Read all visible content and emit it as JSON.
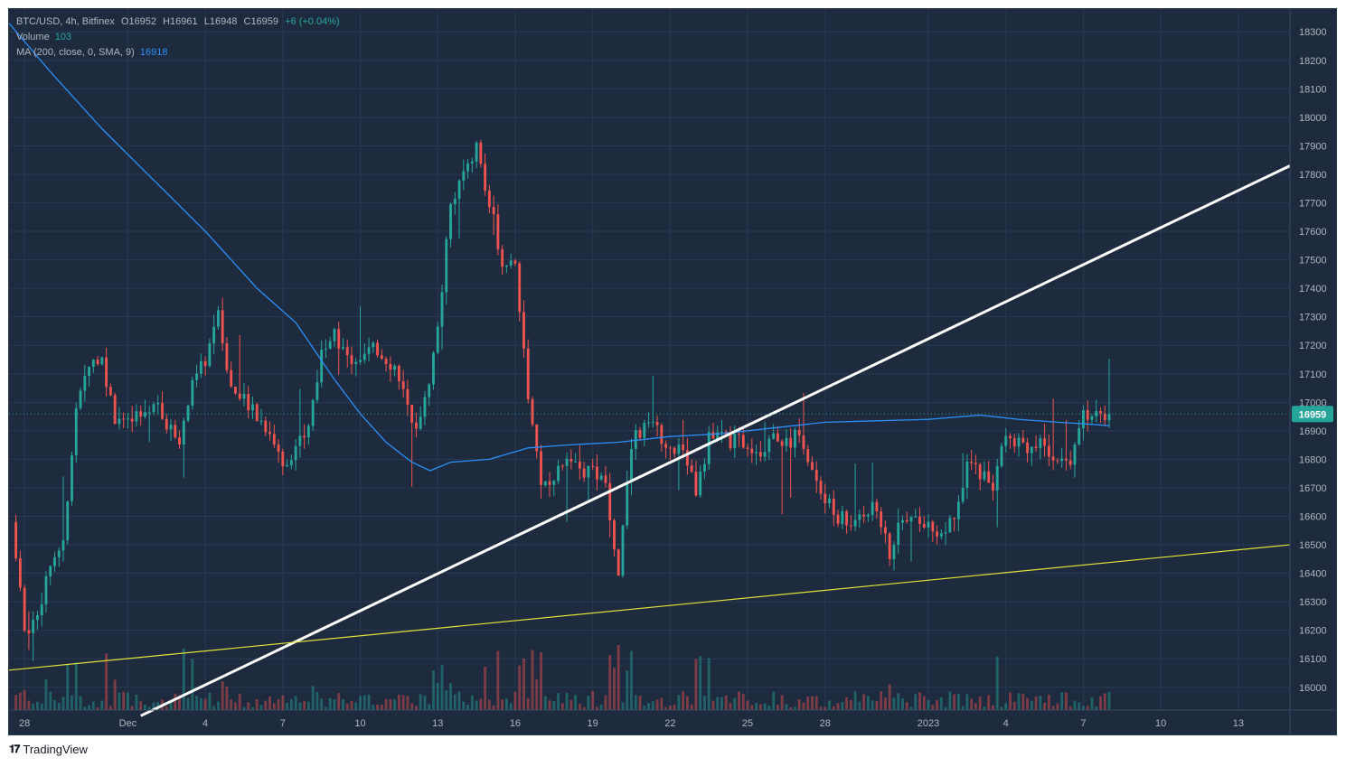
{
  "legend": {
    "symbol": "BTC/USD, 4h, Bitfinex",
    "open": "O16952",
    "high": "H16961",
    "low": "L16948",
    "close": "C16959",
    "change": "+6 (+0.04%)",
    "volume_label": "Volume",
    "volume_value": "103",
    "ma_label": "MA (200, close, 0, SMA, 9)",
    "ma_value": "16918"
  },
  "price_tag": "16959",
  "brand": "TradingView",
  "colors": {
    "background": "#1e2b3e",
    "up": "#26a69a",
    "down": "#ef5350",
    "ma": "#2a8ff7",
    "trendline_white": "#ffffff",
    "trendline_yellow": "#e2e23a",
    "text": "#b2b5be"
  },
  "chart_data": {
    "type": "candlestick",
    "symbol": "BTC/USD",
    "interval": "4h",
    "exchange": "Bitfinex",
    "ylim": [
      15920,
      18380
    ],
    "y_ticks": [
      16000,
      16100,
      16200,
      16300,
      16400,
      16500,
      16600,
      16700,
      16800,
      16900,
      17000,
      17100,
      17200,
      17300,
      17400,
      17500,
      17600,
      17700,
      17800,
      17900,
      18000,
      18100,
      18200,
      18300
    ],
    "x_ticks": [
      {
        "label": "28",
        "day": -3
      },
      {
        "label": "Dec",
        "day": 1
      },
      {
        "label": "4",
        "day": 4
      },
      {
        "label": "7",
        "day": 7
      },
      {
        "label": "10",
        "day": 10
      },
      {
        "label": "13",
        "day": 13
      },
      {
        "label": "16",
        "day": 16
      },
      {
        "label": "19",
        "day": 19
      },
      {
        "label": "22",
        "day": 22
      },
      {
        "label": "25",
        "day": 25
      },
      {
        "label": "28",
        "day": 28
      },
      {
        "label": "2023",
        "day": 32
      },
      {
        "label": "4",
        "day": 35
      },
      {
        "label": "7",
        "day": 38
      },
      {
        "label": "10",
        "day": 41
      },
      {
        "label": "13",
        "day": 44
      }
    ],
    "x_range": [
      -3.6,
      46.0
    ],
    "current_price": 16959,
    "close_path": [
      [
        -3.5,
        16580
      ],
      [
        -3.0,
        16200
      ],
      [
        -2.5,
        16250
      ],
      [
        -2.0,
        16450
      ],
      [
        -1.5,
        16500
      ],
      [
        -1.0,
        16950
      ],
      [
        -0.5,
        17150
      ],
      [
        0.0,
        17150
      ],
      [
        0.5,
        16950
      ],
      [
        1.0,
        16920
      ],
      [
        1.5,
        16950
      ],
      [
        2.0,
        17000
      ],
      [
        2.5,
        16920
      ],
      [
        3.0,
        16880
      ],
      [
        3.5,
        17050
      ],
      [
        4.0,
        17150
      ],
      [
        4.5,
        17300
      ],
      [
        5.0,
        17050
      ],
      [
        5.5,
        17000
      ],
      [
        6.0,
        16950
      ],
      [
        6.5,
        16900
      ],
      [
        7.0,
        16780
      ],
      [
        7.5,
        16850
      ],
      [
        8.0,
        16900
      ],
      [
        8.5,
        17200
      ],
      [
        9.0,
        17250
      ],
      [
        9.5,
        17150
      ],
      [
        10.0,
        17160
      ],
      [
        10.5,
        17180
      ],
      [
        11.0,
        17160
      ],
      [
        11.5,
        17100
      ],
      [
        12.0,
        16900
      ],
      [
        12.5,
        17000
      ],
      [
        13.0,
        17250
      ],
      [
        13.5,
        17700
      ],
      [
        14.0,
        17800
      ],
      [
        14.5,
        17900
      ],
      [
        15.0,
        17700
      ],
      [
        15.5,
        17500
      ],
      [
        16.0,
        17480
      ],
      [
        16.5,
        17000
      ],
      [
        17.0,
        16700
      ],
      [
        17.5,
        16750
      ],
      [
        18.0,
        16780
      ],
      [
        18.5,
        16760
      ],
      [
        19.0,
        16750
      ],
      [
        19.5,
        16700
      ],
      [
        20.0,
        16400
      ],
      [
        20.5,
        16850
      ],
      [
        21.0,
        16920
      ],
      [
        21.5,
        16900
      ],
      [
        22.0,
        16850
      ],
      [
        22.5,
        16820
      ],
      [
        23.0,
        16700
      ],
      [
        23.5,
        16870
      ],
      [
        24.0,
        16880
      ],
      [
        24.5,
        16860
      ],
      [
        25.0,
        16860
      ],
      [
        25.5,
        16830
      ],
      [
        26.0,
        16900
      ],
      [
        26.5,
        16850
      ],
      [
        27.0,
        16900
      ],
      [
        27.5,
        16750
      ],
      [
        28.0,
        16650
      ],
      [
        28.5,
        16600
      ],
      [
        29.0,
        16580
      ],
      [
        29.5,
        16620
      ],
      [
        30.0,
        16640
      ],
      [
        30.5,
        16450
      ],
      [
        31.0,
        16600
      ],
      [
        31.5,
        16620
      ],
      [
        32.0,
        16560
      ],
      [
        32.5,
        16540
      ],
      [
        33.0,
        16600
      ],
      [
        33.5,
        16780
      ],
      [
        34.0,
        16760
      ],
      [
        34.5,
        16700
      ],
      [
        35.0,
        16880
      ],
      [
        35.5,
        16870
      ],
      [
        36.0,
        16840
      ],
      [
        36.5,
        16850
      ],
      [
        37.0,
        16800
      ],
      [
        37.5,
        16780
      ],
      [
        38.0,
        16960
      ],
      [
        38.5,
        16950
      ],
      [
        39.0,
        16959
      ]
    ],
    "ma_200": {
      "name": "MA (200, close, 0, SMA, 9)",
      "points": [
        [
          -3.6,
          18330
        ],
        [
          -2.0,
          18160
        ],
        [
          0.0,
          17960
        ],
        [
          2.0,
          17780
        ],
        [
          4.0,
          17600
        ],
        [
          6.0,
          17400
        ],
        [
          7.5,
          17280
        ],
        [
          9.0,
          17080
        ],
        [
          10.0,
          16960
        ],
        [
          11.0,
          16860
        ],
        [
          12.0,
          16790
        ],
        [
          12.7,
          16760
        ],
        [
          13.5,
          16790
        ],
        [
          15.0,
          16800
        ],
        [
          16.5,
          16840
        ],
        [
          18.0,
          16850
        ],
        [
          20.0,
          16860
        ],
        [
          22.0,
          16880
        ],
        [
          24.0,
          16890
        ],
        [
          26.0,
          16910
        ],
        [
          28.0,
          16930
        ],
        [
          30.0,
          16935
        ],
        [
          32.0,
          16940
        ],
        [
          34.0,
          16955
        ],
        [
          35.5,
          16940
        ],
        [
          37.0,
          16930
        ],
        [
          38.0,
          16925
        ],
        [
          39.0,
          16918
        ]
      ]
    },
    "trendlines": [
      {
        "color": "white",
        "from": [
          1.5,
          15900
        ],
        "to": [
          46.0,
          17830
        ]
      },
      {
        "color": "yellow",
        "from": [
          -3.6,
          16060
        ],
        "to": [
          46.0,
          16500
        ]
      }
    ]
  }
}
